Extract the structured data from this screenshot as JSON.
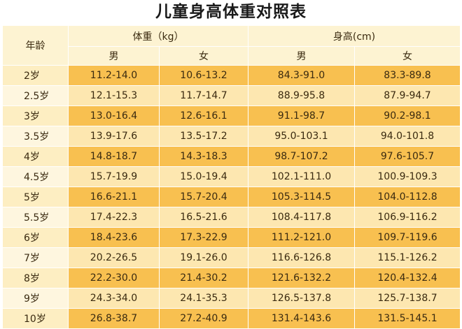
{
  "title": "儿童身高体重对照表",
  "header": {
    "age_label": "年龄",
    "weight_label": "体重（kg）",
    "height_label": "身高(cm)",
    "male": "男",
    "female": "女"
  },
  "rows": [
    {
      "age": "2岁",
      "w_m": "11.2-14.0",
      "w_f": "10.6-13.2",
      "h_m": "84.3-91.0",
      "h_f": "83.3-89.8"
    },
    {
      "age": "2.5岁",
      "w_m": "12.1-15.3",
      "w_f": "11.7-14.7",
      "h_m": "88.9-95.8",
      "h_f": "87.9-94.7"
    },
    {
      "age": "3岁",
      "w_m": "13.0-16.4",
      "w_f": "12.6-16.1",
      "h_m": "91.1-98.7",
      "h_f": "90.2-98.1"
    },
    {
      "age": "3.5岁",
      "w_m": "13.9-17.6",
      "w_f": "13.5-17.2",
      "h_m": "95.0-103.1",
      "h_f": "94.0-101.8"
    },
    {
      "age": "4岁",
      "w_m": "14.8-18.7",
      "w_f": "14.3-18.3",
      "h_m": "98.7-107.2",
      "h_f": "97.6-105.7"
    },
    {
      "age": "4.5岁",
      "w_m": "15.7-19.9",
      "w_f": "15.0-19.4",
      "h_m": "102.1-111.0",
      "h_f": "100.9-109.3"
    },
    {
      "age": "5岁",
      "w_m": "16.6-21.1",
      "w_f": "15.7-20.4",
      "h_m": "105.3-114.5",
      "h_f": "104.0-112.8"
    },
    {
      "age": "5.5岁",
      "w_m": "17.4-22.3",
      "w_f": "16.5-21.6",
      "h_m": "108.4-117.8",
      "h_f": "106.9-116.2"
    },
    {
      "age": "6岁",
      "w_m": "18.4-23.6",
      "w_f": "17.3-22.9",
      "h_m": "111.2-121.0",
      "h_f": "109.7-119.6"
    },
    {
      "age": "7岁",
      "w_m": "20.2-26.5",
      "w_f": "19.1-26.0",
      "h_m": "116.6-126.8",
      "h_f": "115.1-126.2"
    },
    {
      "age": "8岁",
      "w_m": "22.2-30.0",
      "w_f": "21.4-30.2",
      "h_m": "121.6-132.2",
      "h_f": "120.4-132.4"
    },
    {
      "age": "9岁",
      "w_m": "24.3-34.0",
      "w_f": "24.1-35.3",
      "h_m": "126.5-137.8",
      "h_f": "125.7-138.7"
    },
    {
      "age": "10岁",
      "w_m": "26.8-38.7",
      "w_f": "27.2-40.9",
      "h_m": "131.4-143.6",
      "h_f": "131.5-145.1"
    }
  ],
  "colors": {
    "header_bg": "#fdf3d2",
    "row_dark": "#f8c050",
    "row_light": "#fde7b0"
  }
}
